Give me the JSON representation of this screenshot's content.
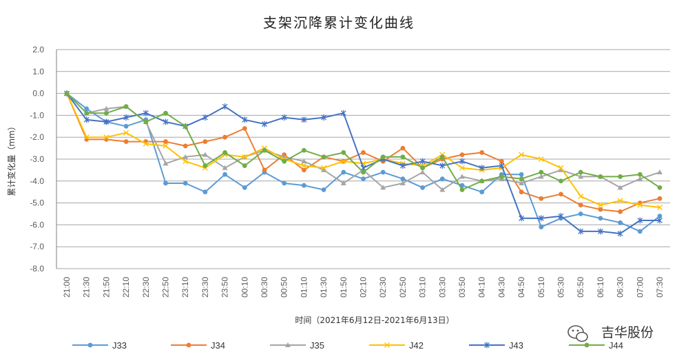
{
  "watermark": {
    "text": "吉华股份",
    "icon": "wechat-icon"
  },
  "chart_data": {
    "type": "line",
    "title": "支架沉降累计变化曲线",
    "xlabel": "时间（2021年6月12日-2021年6月13日）",
    "ylabel": "累计变化量（mm）",
    "ylim": [
      -8.0,
      2.0
    ],
    "ytick_step": 1.0,
    "grid": true,
    "legend_position": "bottom",
    "categories": [
      "21:00",
      "21:30",
      "21:50",
      "22:10",
      "22:30",
      "22:50",
      "23:10",
      "23:30",
      "23:50",
      "00:10",
      "00:30",
      "00:50",
      "01:10",
      "01:30",
      "01:50",
      "02:10",
      "02:30",
      "02:50",
      "03:10",
      "03:30",
      "03:50",
      "04:10",
      "04:30",
      "04:50",
      "05:10",
      "05:30",
      "05:50",
      "06:10",
      "06:30",
      "07:00",
      "07:30"
    ],
    "series": [
      {
        "name": "J33",
        "color": "#5B9BD5",
        "marker": "circle",
        "values": [
          0,
          -0.7,
          -1.3,
          -1.5,
          -1.2,
          -4.1,
          -4.1,
          -4.5,
          -3.7,
          -4.3,
          -3.6,
          -4.1,
          -4.2,
          -4.4,
          -3.6,
          -3.9,
          -3.6,
          -3.9,
          -4.3,
          -3.9,
          -4.2,
          -4.5,
          -3.7,
          -3.7,
          -6.1,
          -5.7,
          -5.5,
          -5.7,
          -5.9,
          -6.3,
          -5.6
        ]
      },
      {
        "name": "J34",
        "color": "#ED7D31",
        "marker": "circle",
        "values": [
          0,
          -2.1,
          -2.1,
          -2.2,
          -2.2,
          -2.2,
          -2.4,
          -2.2,
          -2.0,
          -1.6,
          -3.5,
          -2.8,
          -3.5,
          -2.9,
          -3.1,
          -2.7,
          -3.1,
          -2.5,
          -3.4,
          -3.0,
          -2.8,
          -2.7,
          -3.1,
          -4.5,
          -4.8,
          -4.6,
          -5.1,
          -5.3,
          -5.4,
          -5.0,
          -4.8
        ]
      },
      {
        "name": "J35",
        "color": "#A5A5A5",
        "marker": "triangle",
        "values": [
          0,
          -0.9,
          -0.7,
          -0.6,
          -1.3,
          -3.2,
          -2.9,
          -2.8,
          -3.4,
          -2.9,
          -2.6,
          -2.9,
          -3.1,
          -3.5,
          -4.1,
          -3.5,
          -4.3,
          -4.1,
          -3.6,
          -4.4,
          -3.8,
          -4.0,
          -3.9,
          -4.1,
          -3.8,
          -3.5,
          -3.8,
          -3.8,
          -4.3,
          -3.9,
          -3.6
        ]
      },
      {
        "name": "J42",
        "color": "#FFC000",
        "marker": "x",
        "values": [
          0,
          -2.0,
          -2.0,
          -1.8,
          -2.3,
          -2.4,
          -3.1,
          -3.4,
          -2.8,
          -2.9,
          -2.5,
          -3.0,
          -3.3,
          -3.4,
          -3.1,
          -3.2,
          -3.0,
          -3.2,
          -3.3,
          -2.8,
          -3.4,
          -3.5,
          -3.4,
          -2.8,
          -3.0,
          -3.4,
          -4.7,
          -5.1,
          -4.9,
          -5.1,
          -5.2
        ]
      },
      {
        "name": "J43",
        "color": "#4472C4",
        "marker": "star",
        "values": [
          0,
          -1.2,
          -1.3,
          -1.1,
          -0.9,
          -1.3,
          -1.5,
          -1.1,
          -0.6,
          -1.2,
          -1.4,
          -1.1,
          -1.2,
          -1.1,
          -0.9,
          -3.4,
          -3.0,
          -3.3,
          -3.1,
          -3.3,
          -3.1,
          -3.4,
          -3.3,
          -5.7,
          -5.7,
          -5.6,
          -6.3,
          -6.3,
          -6.4,
          -5.8,
          -5.8
        ]
      },
      {
        "name": "J44",
        "color": "#70AD47",
        "marker": "circle",
        "values": [
          0,
          -0.9,
          -0.9,
          -0.6,
          -1.3,
          -0.9,
          -1.5,
          -3.3,
          -2.7,
          -3.3,
          -2.6,
          -3.1,
          -2.6,
          -2.9,
          -2.7,
          -3.6,
          -2.9,
          -2.9,
          -3.4,
          -2.9,
          -4.4,
          -4.0,
          -3.8,
          -3.9,
          -3.6,
          -4.0,
          -3.6,
          -3.8,
          -3.8,
          -3.7,
          -4.3
        ]
      }
    ]
  }
}
